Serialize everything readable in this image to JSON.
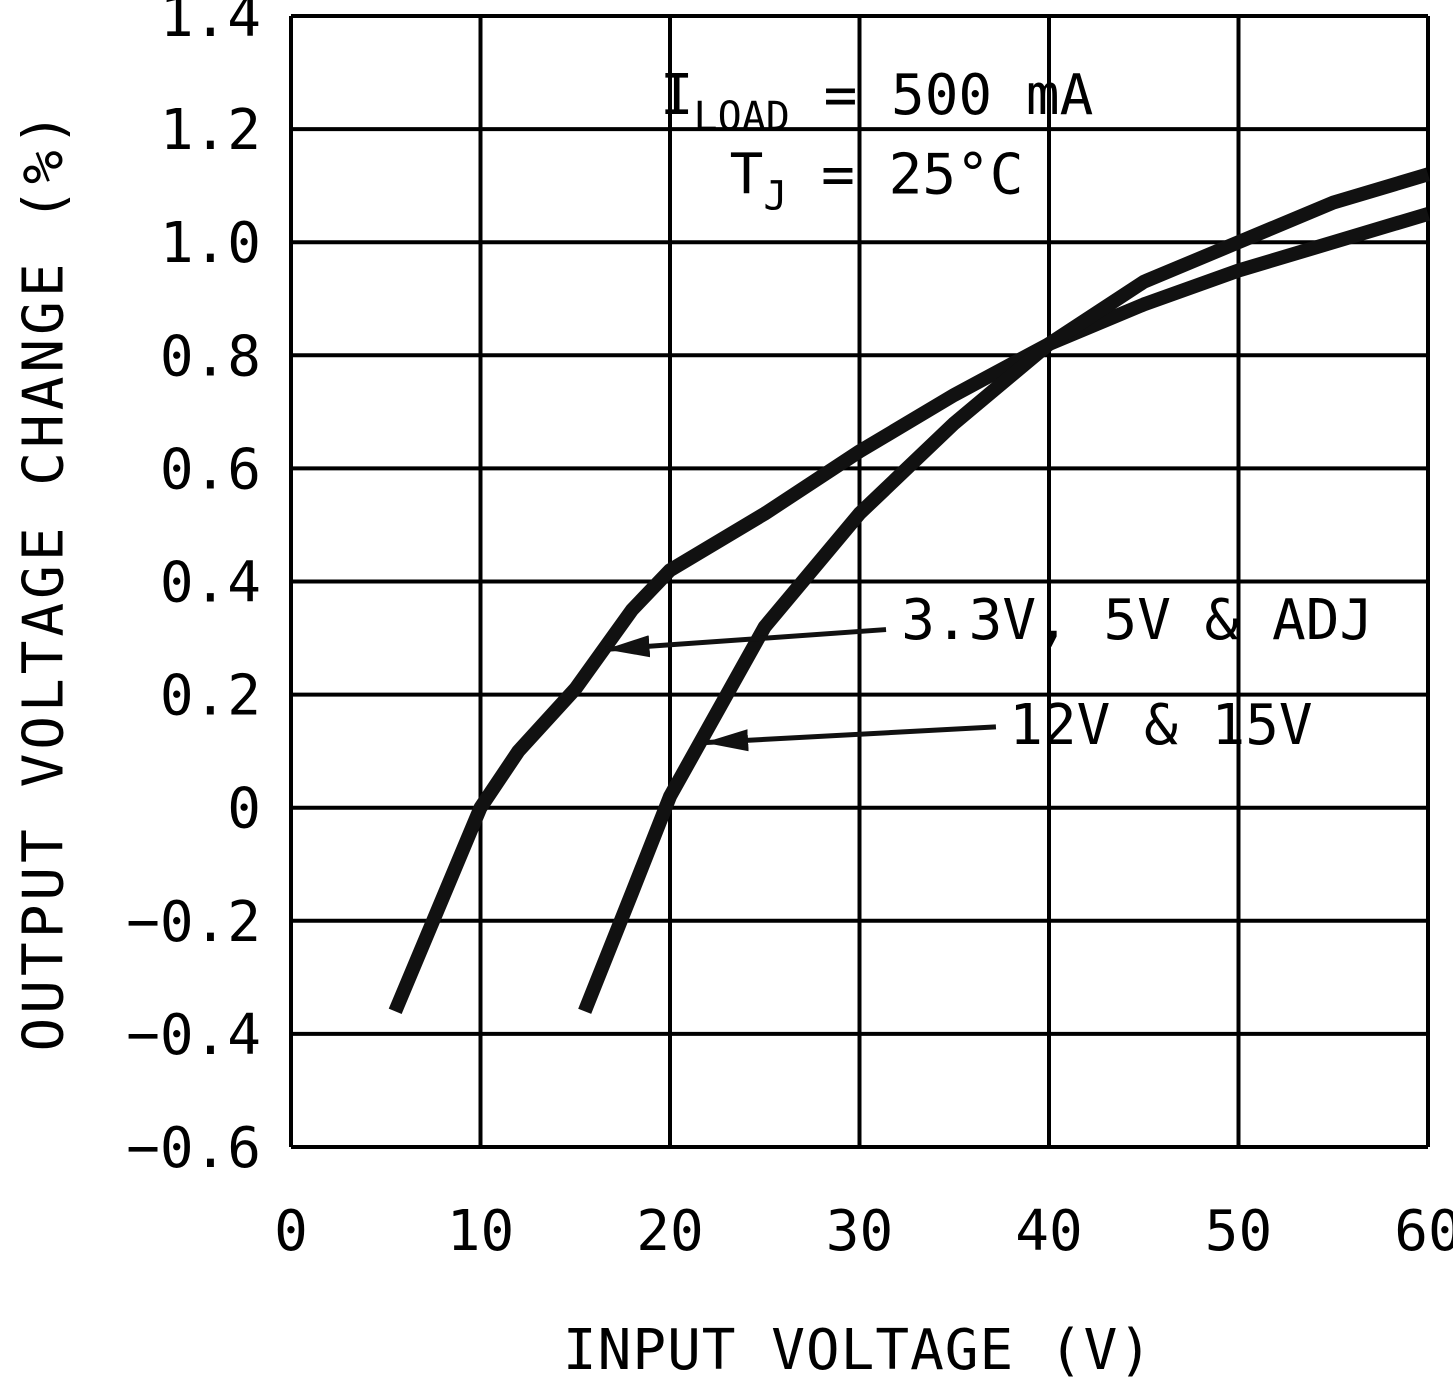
{
  "chart_data": {
    "type": "line",
    "title": "",
    "xlabel": "INPUT VOLTAGE (V)",
    "ylabel": "OUTPUT VOLTAGE CHANGE (%)",
    "xlim": [
      0,
      60
    ],
    "ylim": [
      -0.6,
      1.4
    ],
    "grid": true,
    "colors": {
      "line": "#111111",
      "grid": "#000000",
      "text": "#000000"
    },
    "xticks": [
      {
        "v": 0,
        "label": "0"
      },
      {
        "v": 10,
        "label": "10"
      },
      {
        "v": 20,
        "label": "20"
      },
      {
        "v": 30,
        "label": "30"
      },
      {
        "v": 40,
        "label": "40"
      },
      {
        "v": 50,
        "label": "50"
      },
      {
        "v": 60,
        "label": "60"
      }
    ],
    "yticks": [
      {
        "v": 1.4,
        "label": "1.4"
      },
      {
        "v": 1.2,
        "label": "1.2"
      },
      {
        "v": 1.0,
        "label": "1.0"
      },
      {
        "v": 0.8,
        "label": "0.8"
      },
      {
        "v": 0.6,
        "label": "0.6"
      },
      {
        "v": 0.4,
        "label": "0.4"
      },
      {
        "v": 0.2,
        "label": "0.2"
      },
      {
        "v": 0,
        "label": "0"
      },
      {
        "v": -0.2,
        "label": "−0.2"
      },
      {
        "v": -0.4,
        "label": "−0.4"
      },
      {
        "v": -0.6,
        "label": "−0.6"
      }
    ],
    "conditions": {
      "x": 30.9,
      "y": [
        1.227,
        1.086
      ],
      "items": [
        {
          "pre": "I",
          "sub": "LOAD",
          "post": " = 500 mA"
        },
        {
          "pre": "T",
          "sub": "J",
          "post": " = 25°C"
        }
      ]
    },
    "series": [
      {
        "name": "3.3V, 5V & ADJ",
        "x": [
          5.5,
          8,
          10,
          12,
          15,
          18,
          20,
          25,
          30,
          35,
          40,
          45,
          50,
          55,
          60
        ],
        "y": [
          -0.36,
          -0.16,
          0.0,
          0.1,
          0.21,
          0.35,
          0.42,
          0.52,
          0.63,
          0.73,
          0.82,
          0.89,
          0.95,
          1.0,
          1.05
        ]
      },
      {
        "name": "12V & 15V",
        "x": [
          15.5,
          18,
          20,
          22,
          25,
          30,
          35,
          40,
          45,
          50,
          55,
          60
        ],
        "y": [
          -0.36,
          -0.15,
          0.02,
          0.14,
          0.32,
          0.52,
          0.68,
          0.82,
          0.93,
          1.0,
          1.07,
          1.12
        ]
      }
    ],
    "annotations": [
      {
        "series": 0,
        "x": 32.2,
        "y": 0.298,
        "arrow": {
          "x1": 31.4,
          "y1": 0.315,
          "x2": 16.6,
          "y2": 0.28
        }
      },
      {
        "series": 1,
        "x": 37.9,
        "y": 0.113,
        "arrow": {
          "x1": 37.2,
          "y1": 0.143,
          "x2": 21.8,
          "y2": 0.115
        }
      }
    ]
  }
}
